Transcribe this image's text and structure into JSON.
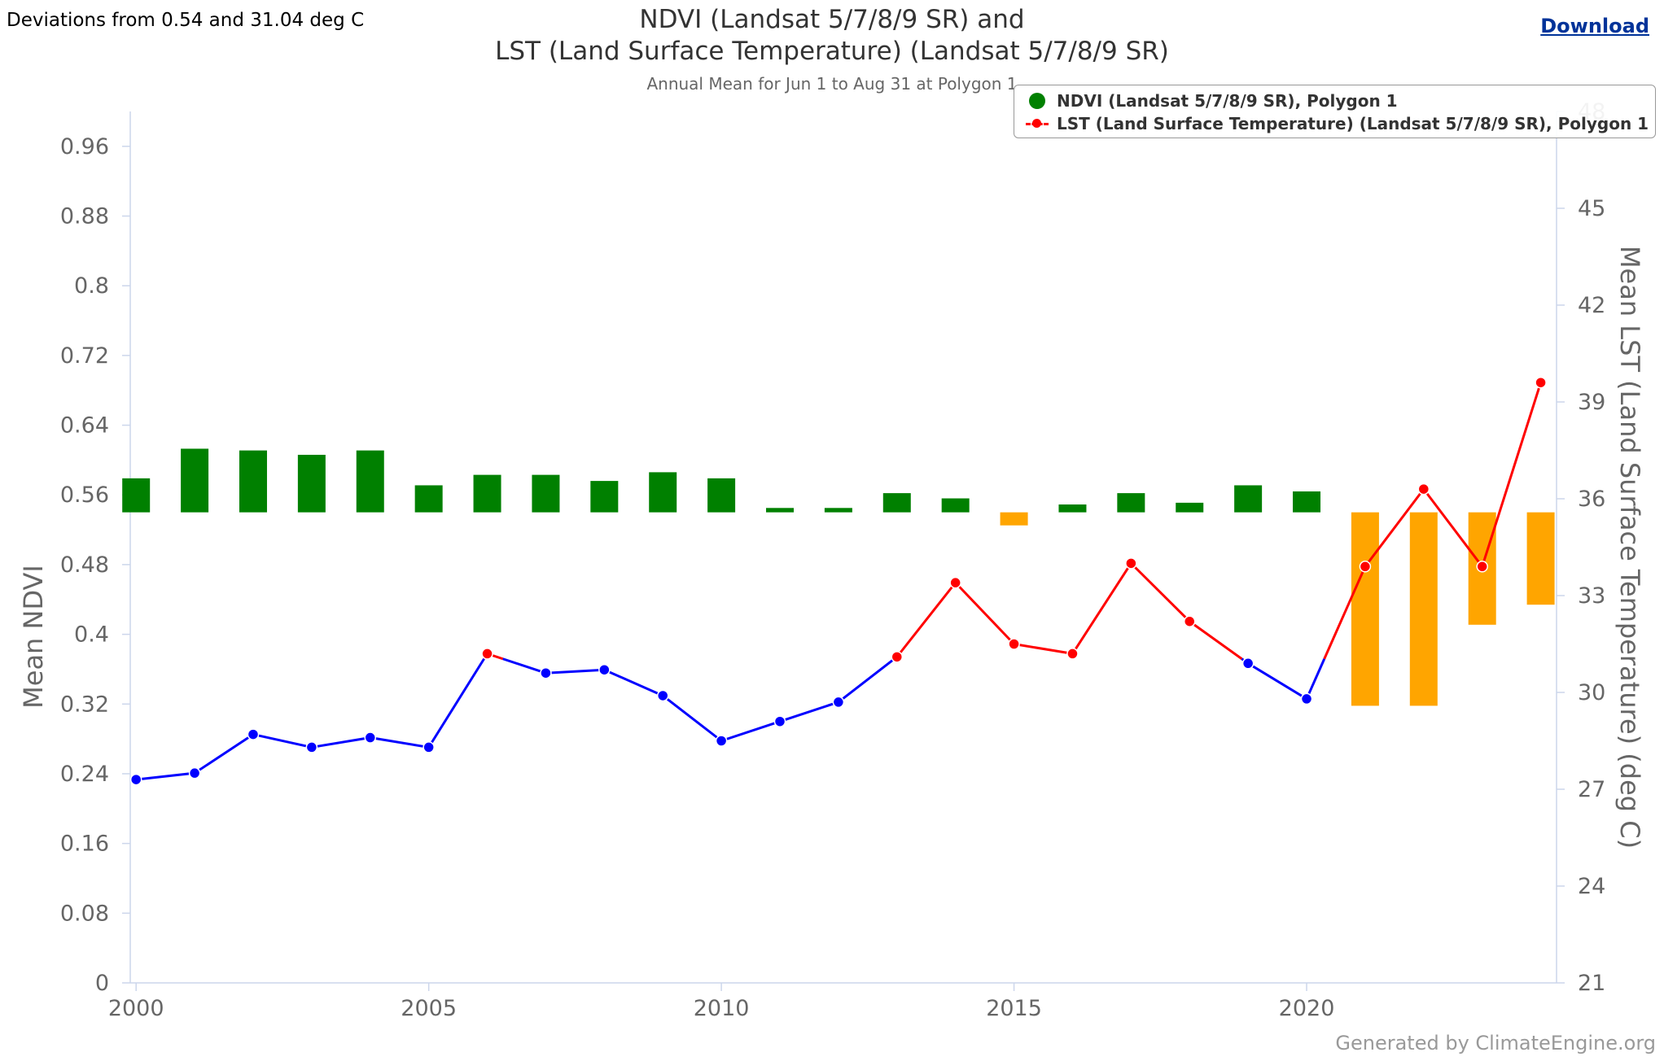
{
  "header": {
    "note": "Deviations from 0.54 and 31.04 deg C",
    "title_line1": "NDVI (Landsat 5/7/8/9 SR) and",
    "title_line2": "LST (Land Surface Temperature) (Landsat 5/7/8/9 SR)",
    "subtitle": "Annual Mean for Jun 1 to Aug 31 at Polygon 1",
    "download_label": "Download"
  },
  "legend": {
    "ndvi_label": "NDVI (Landsat 5/7/8/9 SR), Polygon 1",
    "lst_label": "LST (Land Surface Temperature) (Landsat 5/7/8/9 SR), Polygon 1"
  },
  "credit": "Generated by ClimateEngine.org",
  "colors": {
    "ndvi_above": "#008000",
    "ndvi_below": "#ffa500",
    "lst_above": "#ff0000",
    "lst_below": "#0000ff",
    "axis": "#ccd6eb",
    "tick_text": "#666666"
  },
  "chart_data": {
    "type": "bar+line",
    "x_ticks": [
      2000,
      2005,
      2010,
      2015,
      2020
    ],
    "y_left": {
      "label": "Mean NDVI",
      "range": [
        0,
        1.0
      ],
      "ticks": [
        0,
        0.08,
        0.16,
        0.24,
        0.32,
        0.4,
        0.48,
        0.56,
        0.64,
        0.72,
        0.8,
        0.88,
        0.96
      ],
      "tick_labels": [
        "0",
        "0.08",
        "0.16",
        "0.24",
        "0.32",
        "0.4",
        "0.48",
        "0.56",
        "0.64",
        "0.72",
        "0.8",
        "0.88",
        "0.96"
      ],
      "baseline": 0.54
    },
    "y_right": {
      "label": "Mean LST (Land Surface Temperature) (deg C)",
      "range": [
        21,
        48
      ],
      "ticks": [
        21,
        24,
        27,
        30,
        33,
        36,
        39,
        42,
        45,
        48
      ],
      "tick_labels": [
        "21",
        "24",
        "27",
        "30",
        "33",
        "36",
        "39",
        "42",
        "45",
        "48"
      ],
      "baseline": 31.04
    },
    "series": [
      {
        "name": "NDVI (Landsat 5/7/8/9 SR), Polygon 1",
        "type": "bar",
        "x": [
          2000,
          2001,
          2002,
          2003,
          2004,
          2005,
          2006,
          2007,
          2008,
          2009,
          2010,
          2011,
          2012,
          2013,
          2014,
          2015,
          2016,
          2017,
          2018,
          2019,
          2020,
          2021,
          2022,
          2023,
          2024
        ],
        "values": [
          0.579,
          0.613,
          0.611,
          0.606,
          0.611,
          0.571,
          0.583,
          0.583,
          0.576,
          0.586,
          0.579,
          0.545,
          0.545,
          0.562,
          0.556,
          0.525,
          0.549,
          0.562,
          0.551,
          0.571,
          0.564,
          0.318,
          0.318,
          0.411,
          0.434
        ]
      },
      {
        "name": "LST (Land Surface Temperature) (Landsat 5/7/8/9 SR), Polygon 1",
        "type": "line",
        "x": [
          2000,
          2001,
          2002,
          2003,
          2004,
          2005,
          2006,
          2007,
          2008,
          2009,
          2010,
          2011,
          2012,
          2013,
          2014,
          2015,
          2016,
          2017,
          2018,
          2019,
          2020,
          2021,
          2022,
          2023,
          2024
        ],
        "values": [
          27.3,
          27.5,
          28.7,
          28.3,
          28.6,
          28.3,
          31.2,
          30.6,
          30.7,
          29.9,
          28.5,
          29.1,
          29.7,
          31.1,
          33.4,
          31.5,
          31.2,
          34.0,
          32.2,
          30.9,
          29.8,
          33.9,
          36.3,
          33.9,
          39.6
        ]
      }
    ]
  }
}
